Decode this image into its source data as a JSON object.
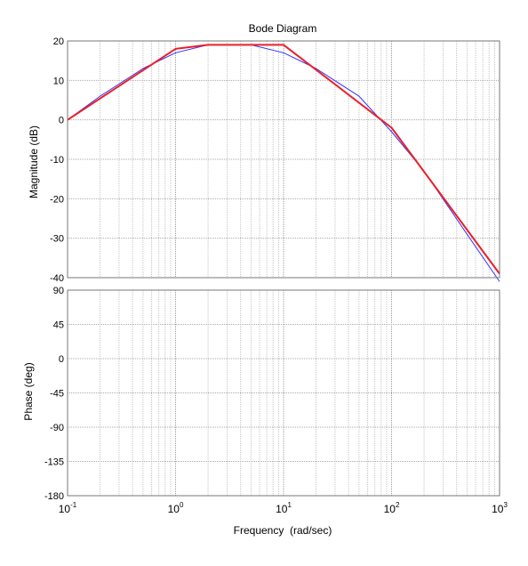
{
  "chart_data": [
    {
      "type": "line",
      "title": "Bode Diagram",
      "ylabel": "Magnitude (dB)",
      "xlabel": "",
      "xscale": "log",
      "xlim": [
        0.1,
        1000
      ],
      "ylim": [
        -40,
        20
      ],
      "yticks": [
        "20",
        "10",
        "0",
        "-10",
        "-20",
        "-30",
        "-40"
      ],
      "grid": true,
      "colors": {
        "actual": "#3333ff",
        "asymptote": "#e8202a"
      },
      "series": [
        {
          "x": [
            0.1,
            0.2,
            0.5,
            1,
            2,
            5,
            10,
            20,
            50,
            100,
            200,
            500,
            1000
          ],
          "y": [
            0,
            6,
            13,
            17,
            19,
            19,
            17,
            13,
            6,
            -3,
            -13,
            -29,
            -41
          ]
        },
        {
          "x": [
            0.1,
            1,
            2,
            10,
            100,
            1000
          ],
          "y": [
            0,
            18,
            19,
            19,
            -2,
            -39
          ]
        }
      ]
    },
    {
      "type": "line",
      "ylabel": "Phase (deg)",
      "xlabel": "Frequency  (rad/sec)",
      "xscale": "log",
      "xlim": [
        0.1,
        1000
      ],
      "ylim": [
        -180,
        90
      ],
      "yticks": [
        "90",
        "45",
        "0",
        "-45",
        "-90",
        "-135",
        "-180"
      ],
      "xticks": [
        {
          "base": "10",
          "exp": "-1"
        },
        {
          "base": "10",
          "exp": "0"
        },
        {
          "base": "10",
          "exp": "1"
        },
        {
          "base": "10",
          "exp": "2"
        },
        {
          "base": "10",
          "exp": "3"
        }
      ],
      "grid": true,
      "series": []
    }
  ]
}
